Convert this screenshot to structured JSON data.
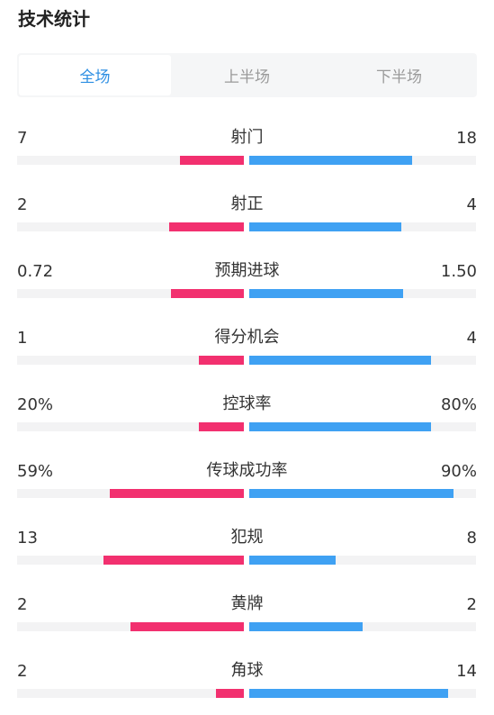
{
  "title": "技术统计",
  "tabs": [
    {
      "label": "全场",
      "active": true
    },
    {
      "label": "上半场",
      "active": false
    },
    {
      "label": "下半场",
      "active": false
    }
  ],
  "colors": {
    "home": "#f2306f",
    "away": "#3fa1f3",
    "track": "#f3f3f4",
    "active_tab": "#2e8fe3"
  },
  "stats": [
    {
      "name": "射门",
      "left": "7",
      "right": "18",
      "left_fill": 0.28,
      "right_fill": 0.72
    },
    {
      "name": "射正",
      "left": "2",
      "right": "4",
      "left_fill": 0.33,
      "right_fill": 0.67
    },
    {
      "name": "预期进球",
      "left": "0.72",
      "right": "1.50",
      "left_fill": 0.32,
      "right_fill": 0.68
    },
    {
      "name": "得分机会",
      "left": "1",
      "right": "4",
      "left_fill": 0.2,
      "right_fill": 0.8
    },
    {
      "name": "控球率",
      "left": "20%",
      "right": "80%",
      "left_fill": 0.2,
      "right_fill": 0.8
    },
    {
      "name": "传球成功率",
      "left": "59%",
      "right": "90%",
      "left_fill": 0.59,
      "right_fill": 0.9
    },
    {
      "name": "犯规",
      "left": "13",
      "right": "8",
      "left_fill": 0.62,
      "right_fill": 0.38
    },
    {
      "name": "黄牌",
      "left": "2",
      "right": "2",
      "left_fill": 0.5,
      "right_fill": 0.5
    },
    {
      "name": "角球",
      "left": "2",
      "right": "14",
      "left_fill": 0.125,
      "right_fill": 0.875
    }
  ]
}
